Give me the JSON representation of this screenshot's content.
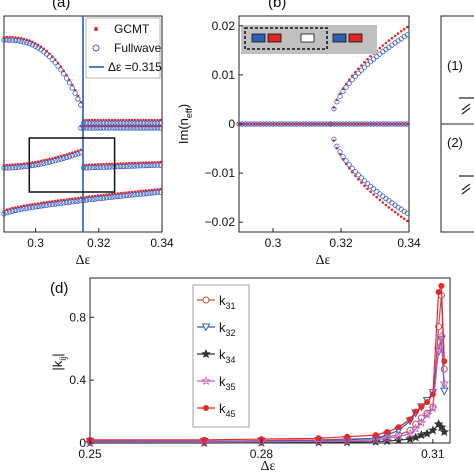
{
  "panels": {
    "a": {
      "label": "(a)",
      "legend": {
        "gcmt": "GCMT",
        "fullwave": "Fullwave",
        "line": "Δε =0.315"
      },
      "xlabel": "Δε",
      "xticks": [
        "0.3",
        "0.32",
        "0.34"
      ]
    },
    "b": {
      "label": "(b)",
      "ylabel": "Im(n",
      "ylabel_sub": "eff",
      "ylabel_close": ")",
      "xlabel": "Δε",
      "xticks": [
        "0.3",
        "0.32",
        "0.34"
      ],
      "yticks": [
        "0.02",
        "0.01",
        "0",
        "−0.01",
        "−0.02"
      ]
    },
    "c": {
      "items": [
        "(1)",
        "(2)"
      ]
    },
    "d": {
      "label": "(d)",
      "ylabel": "|k",
      "ylabel_sub": "ij",
      "ylabel_close": "|",
      "xlabel": "Δε",
      "xticks": [
        "0.25",
        "0.28",
        "0.31"
      ],
      "yticks": [
        "0.8",
        "0.4",
        "0"
      ],
      "legend": [
        {
          "main": "k",
          "sub": "31",
          "color": "#c0504d",
          "marker": "open-circle"
        },
        {
          "main": "k",
          "sub": "32",
          "color": "#2e5fb5",
          "marker": "down-triangle"
        },
        {
          "main": "k",
          "sub": "34",
          "color": "#333333",
          "marker": "star"
        },
        {
          "main": "k",
          "sub": "35",
          "color": "#c060c0",
          "marker": "open-star"
        },
        {
          "main": "k",
          "sub": "45",
          "color": "#e8282b",
          "marker": "filled-circle"
        }
      ]
    }
  },
  "chart_data": [
    {
      "panel": "a",
      "type": "scatter",
      "xlim": [
        0.29,
        0.34
      ],
      "xticks": [
        0.3,
        0.32,
        0.34
      ],
      "vline": 0.315,
      "inset_box": [
        0.298,
        0.325
      ],
      "series": [
        {
          "name": "GCMT",
          "marker": "filled-dot",
          "color": "#e8282b"
        },
        {
          "name": "Fullwave",
          "marker": "open-circle",
          "color": "#3a5bbf"
        }
      ]
    },
    {
      "panel": "b",
      "type": "scatter",
      "xlim": [
        0.29,
        0.34
      ],
      "ylim": [
        -0.022,
        0.022
      ],
      "xticks": [
        0.3,
        0.32,
        0.34
      ],
      "yticks": [
        0.02,
        0.01,
        0,
        -0.01,
        -0.02
      ],
      "threshold": 0.317,
      "end_value": 0.02,
      "series": [
        {
          "name": "GCMT",
          "color": "#e8282b"
        },
        {
          "name": "Fullwave",
          "color": "#3a5bbf"
        }
      ]
    },
    {
      "panel": "d",
      "type": "line",
      "xlim": [
        0.25,
        0.313
      ],
      "ylim": [
        0,
        1.05
      ],
      "xticks": [
        0.25,
        0.28,
        0.31
      ],
      "yticks": [
        0,
        0.4,
        0.8
      ],
      "x": [
        0.25,
        0.27,
        0.28,
        0.29,
        0.295,
        0.3,
        0.302,
        0.304,
        0.306,
        0.307,
        0.308,
        0.309,
        0.31,
        0.311,
        0.3115,
        0.312
      ],
      "series": [
        {
          "name": "k31",
          "values": [
            0.01,
            0.01,
            0.015,
            0.02,
            0.025,
            0.03,
            0.04,
            0.05,
            0.08,
            0.12,
            0.16,
            0.19,
            0.23,
            0.74,
            0.94,
            0.47
          ]
        },
        {
          "name": "k32",
          "values": [
            0.01,
            0.01,
            0.012,
            0.015,
            0.02,
            0.03,
            0.05,
            0.08,
            0.14,
            0.19,
            0.23,
            0.27,
            0.32,
            0.58,
            0.66,
            0.33
          ]
        },
        {
          "name": "k34",
          "values": [
            0.0,
            0.0,
            0.002,
            0.003,
            0.005,
            0.008,
            0.012,
            0.018,
            0.025,
            0.035,
            0.05,
            0.06,
            0.08,
            0.12,
            0.1,
            0.07
          ]
        },
        {
          "name": "k35",
          "values": [
            0.005,
            0.006,
            0.008,
            0.01,
            0.012,
            0.02,
            0.03,
            0.04,
            0.06,
            0.09,
            0.13,
            0.18,
            0.22,
            0.6,
            0.68,
            0.38
          ]
        },
        {
          "name": "k45",
          "values": [
            0.02,
            0.02,
            0.025,
            0.03,
            0.04,
            0.05,
            0.07,
            0.1,
            0.15,
            0.2,
            0.23,
            0.26,
            0.31,
            0.96,
            1.0,
            0.52
          ]
        }
      ]
    }
  ]
}
